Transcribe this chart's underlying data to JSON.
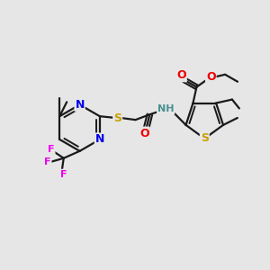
{
  "background_color": "#e6e6e6",
  "bond_color": "#1a1a1a",
  "atom_colors": {
    "N": "#0000ee",
    "S": "#c8a000",
    "O": "#ee0000",
    "F": "#ee00ee",
    "H": "#4a9090",
    "C": "#1a1a1a"
  },
  "figsize": [
    3.0,
    3.0
  ],
  "dpi": 100
}
